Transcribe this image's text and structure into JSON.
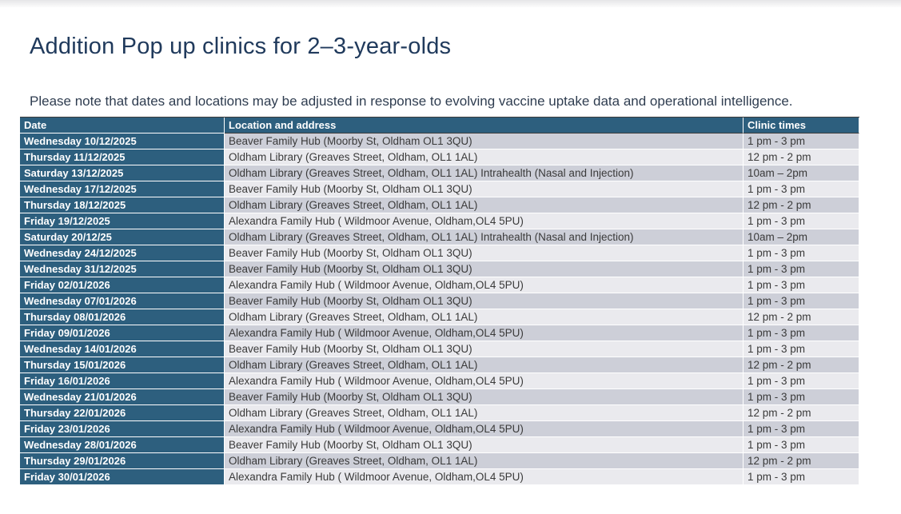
{
  "page": {
    "title": "Addition Pop up clinics for 2–3-year-olds",
    "note": "Please note that dates and locations may be adjusted in response to evolving vaccine uptake data and operational intelligence."
  },
  "table": {
    "columns": [
      "Date",
      "Location and address",
      "Clinic times"
    ],
    "rows": [
      {
        "date": "Wednesday 10/12/2025",
        "location": "Beaver Family Hub (Moorby St, Oldham OL1 3QU)",
        "times": "1 pm - 3 pm"
      },
      {
        "date": "Thursday 11/12/2025",
        "location": "Oldham Library (Greaves Street, Oldham, OL1 1AL)",
        "times": "12 pm - 2 pm"
      },
      {
        "date": "Saturday 13/12/2025",
        "location": "Oldham Library (Greaves Street, Oldham, OL1 1AL) Intrahealth (Nasal and Injection)",
        "times": "10am – 2pm"
      },
      {
        "date": "Wednesday 17/12/2025",
        "location": "Beaver Family Hub (Moorby St, Oldham OL1 3QU)",
        "times": "1 pm - 3 pm"
      },
      {
        "date": "Thursday 18/12/2025",
        "location": "Oldham Library (Greaves Street, Oldham, OL1 1AL)",
        "times": "12 pm - 2 pm"
      },
      {
        "date": "Friday 19/12/2025",
        "location": "Alexandra Family Hub ( Wildmoor Avenue, Oldham,OL4 5PU)",
        "times": "1 pm - 3 pm"
      },
      {
        "date": "Saturday 20/12/25",
        "location": "Oldham Library (Greaves Street, Oldham, OL1 1AL) Intrahealth (Nasal and Injection)",
        "times": "10am – 2pm"
      },
      {
        "date": "Wednesday 24/12/2025",
        "location": "Beaver Family Hub (Moorby St, Oldham OL1 3QU)",
        "times": "1 pm - 3 pm"
      },
      {
        "date": "Wednesday 31/12/2025",
        "location": "Beaver Family Hub (Moorby St, Oldham OL1 3QU)",
        "times": "1 pm - 3 pm"
      },
      {
        "date": "Friday 02/01/2026",
        "location": "Alexandra Family Hub ( Wildmoor Avenue, Oldham,OL4 5PU)",
        "times": "1 pm - 3 pm"
      },
      {
        "date": "Wednesday 07/01/2026",
        "location": "Beaver Family Hub (Moorby St, Oldham OL1 3QU)",
        "times": "1 pm - 3 pm"
      },
      {
        "date": "Thursday 08/01/2026",
        "location": "Oldham Library (Greaves Street, Oldham, OL1 1AL)",
        "times": "12 pm - 2 pm"
      },
      {
        "date": "Friday 09/01/2026",
        "location": "Alexandra Family Hub ( Wildmoor Avenue, Oldham,OL4 5PU)",
        "times": "1 pm - 3 pm"
      },
      {
        "date": "Wednesday 14/01/2026",
        "location": "Beaver Family Hub (Moorby St, Oldham OL1 3QU)",
        "times": "1 pm - 3 pm"
      },
      {
        "date": "Thursday 15/01/2026",
        "location": "Oldham Library (Greaves Street, Oldham, OL1 1AL)",
        "times": "12 pm - 2 pm"
      },
      {
        "date": "Friday 16/01/2026",
        "location": "Alexandra Family Hub ( Wildmoor Avenue, Oldham,OL4 5PU)",
        "times": "1 pm - 3 pm"
      },
      {
        "date": "Wednesday 21/01/2026",
        "location": "Beaver Family Hub (Moorby St, Oldham OL1 3QU)",
        "times": "1 pm - 3 pm"
      },
      {
        "date": "Thursday 22/01/2026",
        "location": "Oldham Library (Greaves Street, Oldham, OL1 1AL)",
        "times": "12 pm - 2 pm"
      },
      {
        "date": "Friday 23/01/2026",
        "location": "Alexandra Family Hub ( Wildmoor Avenue, Oldham,OL4 5PU)",
        "times": "1 pm - 3 pm"
      },
      {
        "date": "Wednesday 28/01/2026",
        "location": "Beaver Family Hub (Moorby St, Oldham OL1 3QU)",
        "times": "1 pm - 3 pm"
      },
      {
        "date": "Thursday 29/01/2026",
        "location": "Oldham Library (Greaves Street, Oldham, OL1 1AL)",
        "times": "12 pm - 2 pm"
      },
      {
        "date": "Friday 30/01/2026",
        "location": "Alexandra Family Hub ( Wildmoor Avenue, Oldham,OL4 5PU)",
        "times": "1 pm - 3 pm"
      }
    ]
  },
  "colors": {
    "header_teal": "#2d5f7e",
    "row_dark": "#cdcfd8",
    "row_light": "#eaeaee",
    "title_navy": "#203a5c",
    "note_color": "#2f3d50"
  }
}
